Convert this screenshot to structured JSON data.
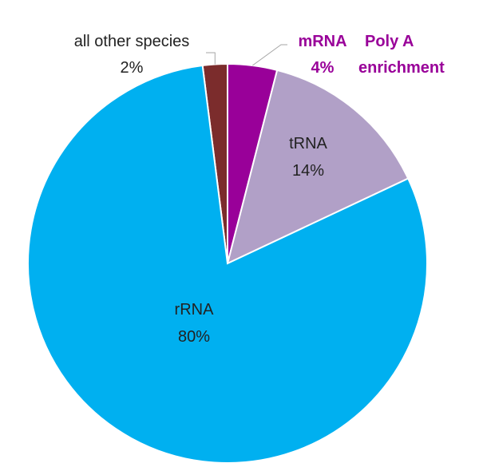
{
  "chart_data": {
    "type": "pie",
    "start_angle_deg": -7.2,
    "direction": "clockwise",
    "slices": [
      {
        "label": "all other species",
        "percent_label": "2%",
        "value": 2,
        "color": "#7b2c2c",
        "label_color": "#222222",
        "bold": false
      },
      {
        "label": "mRNA",
        "percent_label": "4%",
        "value": 4,
        "color": "#990099",
        "label_color": "#990099",
        "bold": true
      },
      {
        "label": "tRNA",
        "percent_label": "14%",
        "value": 14,
        "color": "#b1a0c7",
        "label_color": "#222222",
        "bold": false
      },
      {
        "label": "rRNA",
        "percent_label": "80%",
        "value": 80,
        "color": "#00b0f0",
        "label_color": "#222222",
        "bold": false
      }
    ],
    "annotation": {
      "lines": [
        "Poly A",
        "enrichment"
      ],
      "color": "#990099"
    },
    "slice_border_color": "#ffffff"
  }
}
